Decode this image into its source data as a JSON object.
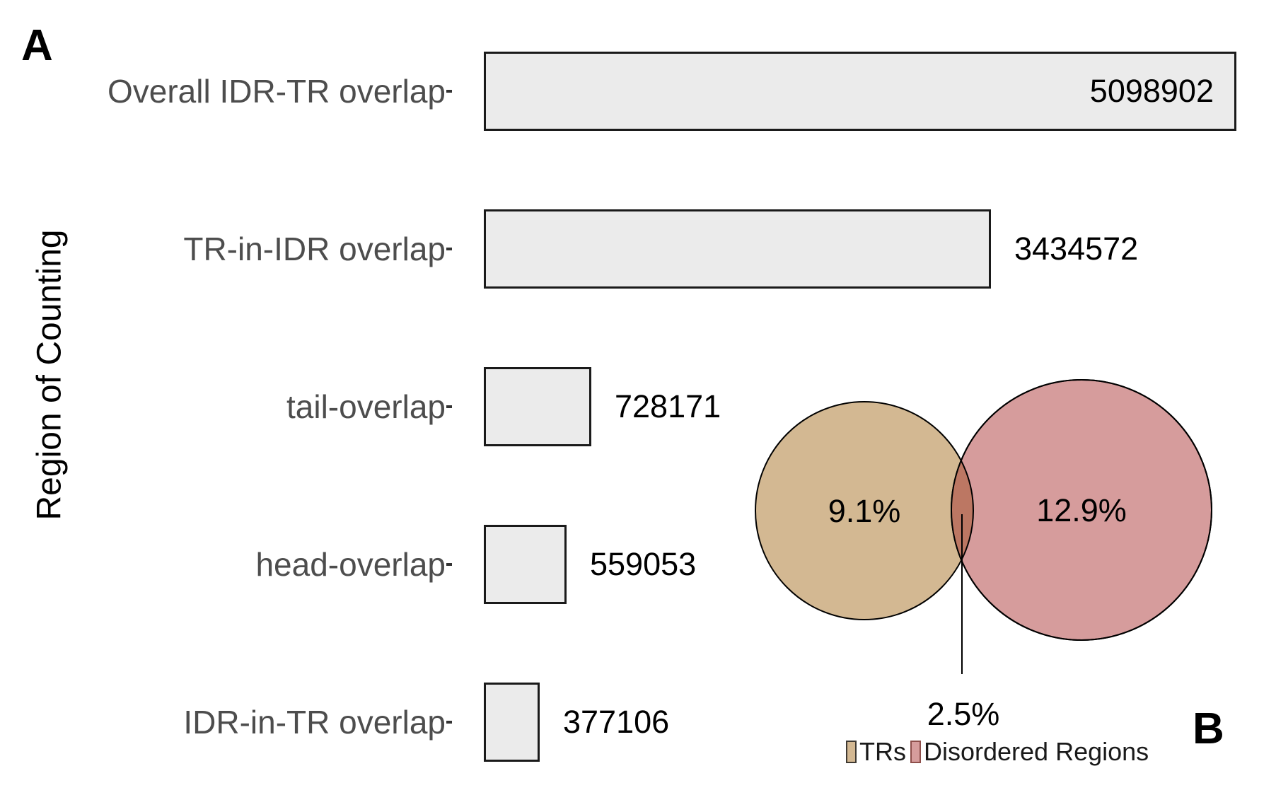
{
  "figure": {
    "panel_a_label": "A",
    "panel_b_label": "B"
  },
  "chart_data": [
    {
      "type": "bar",
      "panel": "A",
      "orientation": "horizontal",
      "title": "",
      "xlabel": "",
      "ylabel": "Region of Counting",
      "categories": [
        "Overall IDR-TR overlap",
        "TR-in-IDR overlap",
        "tail-overlap",
        "head-overlap",
        "IDR-in-TR overlap"
      ],
      "values": [
        5098902,
        3434572,
        728171,
        559053,
        377106
      ],
      "value_labels": [
        "5098902",
        "3434572",
        "728171",
        "559053",
        "377106"
      ],
      "xlim": [
        0,
        5098902
      ],
      "grid": false,
      "bar_fill": "#EBEBEB",
      "bar_border": "#1A1A1A",
      "category_label_color": "#4D4D4D",
      "value_label_color": "#000000"
    },
    {
      "type": "venn",
      "panel": "B",
      "sets": [
        {
          "label": "TRs",
          "percent": "9.1%",
          "color": "#D3B892",
          "swatch_border": "#3F3A33"
        },
        {
          "label": "Disordered Regions",
          "percent": "12.9%",
          "color": "#D69C9C",
          "swatch_border": "#8E4F4B"
        }
      ],
      "intersection": {
        "percent": "2.5%",
        "color": "#BC7763"
      },
      "outline_color": "#000000",
      "legend_position": "bottom"
    }
  ]
}
